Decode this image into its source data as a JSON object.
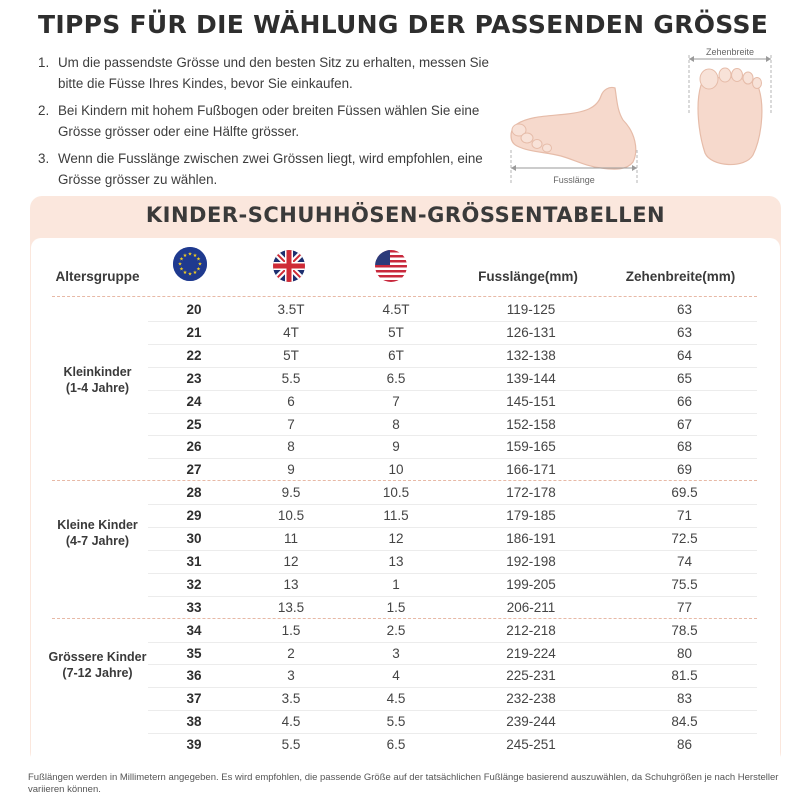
{
  "title": "TIPPS FÜR DIE WÄHLUNG DER PASSENDEN GRÖSSE",
  "tips": [
    {
      "num": "1.",
      "text": "Um die passendste Grösse und den besten Sitz zu erhalten, messen Sie bitte die Füsse Ihres Kindes, bevor Sie einkaufen."
    },
    {
      "num": "2.",
      "text": "Bei Kindern mit hohem Fußbogen oder breiten Füssen wählen Sie eine Grösse grösser oder eine Hälfte grösser."
    },
    {
      "num": "3.",
      "text": "Wenn die Fusslänge zwischen zwei Grössen liegt, wird empfohlen, eine Grösse grösser zu wählen."
    }
  ],
  "diagram": {
    "length_label": "Fusslänge",
    "width_label": "Zehenbreite"
  },
  "table": {
    "title": "KINDER-SCHUHHÖSEN-GRÖSSENTABELLEN",
    "headers": {
      "group": "Altersgruppe",
      "eu_flag": "eu-flag-icon",
      "uk_flag": "uk-flag-icon",
      "us_flag": "us-flag-icon",
      "foot_length": "Fusslänge(mm)",
      "toe_width": "Zehenbreite(mm)"
    },
    "groups": [
      {
        "line1": "Kleinkinder",
        "line2": "(1-4 Jahre)"
      },
      {
        "line1": "Kleine Kinder",
        "line2": "(4-7 Jahre)"
      },
      {
        "line1": "Grössere Kinder",
        "line2": "(7-12 Jahre)"
      }
    ],
    "rows": [
      {
        "eu": "20",
        "uk": "3.5T",
        "us": "4.5T",
        "fl": "119-125",
        "tw": "63"
      },
      {
        "eu": "21",
        "uk": "4T",
        "us": "5T",
        "fl": "126-131",
        "tw": "63"
      },
      {
        "eu": "22",
        "uk": "5T",
        "us": "6T",
        "fl": "132-138",
        "tw": "64"
      },
      {
        "eu": "23",
        "uk": "5.5",
        "us": "6.5",
        "fl": "139-144",
        "tw": "65"
      },
      {
        "eu": "24",
        "uk": "6",
        "us": "7",
        "fl": "145-151",
        "tw": "66"
      },
      {
        "eu": "25",
        "uk": "7",
        "us": "8",
        "fl": "152-158",
        "tw": "67"
      },
      {
        "eu": "26",
        "uk": "8",
        "us": "9",
        "fl": "159-165",
        "tw": "68"
      },
      {
        "eu": "27",
        "uk": "9",
        "us": "10",
        "fl": "166-171",
        "tw": "69"
      },
      {
        "eu": "28",
        "uk": "9.5",
        "us": "10.5",
        "fl": "172-178",
        "tw": "69.5"
      },
      {
        "eu": "29",
        "uk": "10.5",
        "us": "11.5",
        "fl": "179-185",
        "tw": "71"
      },
      {
        "eu": "30",
        "uk": "11",
        "us": "12",
        "fl": "186-191",
        "tw": "72.5"
      },
      {
        "eu": "31",
        "uk": "12",
        "us": "13",
        "fl": "192-198",
        "tw": "74"
      },
      {
        "eu": "32",
        "uk": "13",
        "us": "1",
        "fl": "199-205",
        "tw": "75.5"
      },
      {
        "eu": "33",
        "uk": "13.5",
        "us": "1.5",
        "fl": "206-211",
        "tw": "77"
      },
      {
        "eu": "34",
        "uk": "1.5",
        "us": "2.5",
        "fl": "212-218",
        "tw": "78.5"
      },
      {
        "eu": "35",
        "uk": "2",
        "us": "3",
        "fl": "219-224",
        "tw": "80"
      },
      {
        "eu": "36",
        "uk": "3",
        "us": "4",
        "fl": "225-231",
        "tw": "81.5"
      },
      {
        "eu": "37",
        "uk": "3.5",
        "us": "4.5",
        "fl": "232-238",
        "tw": "83"
      },
      {
        "eu": "38",
        "uk": "4.5",
        "us": "5.5",
        "fl": "239-244",
        "tw": "84.5"
      },
      {
        "eu": "39",
        "uk": "5.5",
        "us": "6.5",
        "fl": "245-251",
        "tw": "86"
      }
    ]
  },
  "footnote": "Fußlängen werden in Millimetern angegeben. Es wird empfohlen, die passende Größe auf der tatsächlichen Fußlänge basierend auszuwählen, da Schuhgrößen je nach Hersteller variieren können.",
  "colors": {
    "panel": "#fbe7dd",
    "accent": "#e7b9a6",
    "skin": "#f6d9cc"
  }
}
